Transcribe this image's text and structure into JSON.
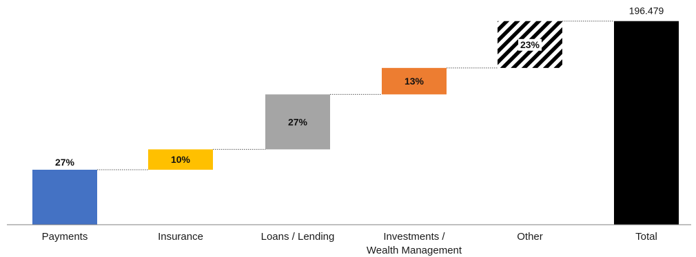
{
  "chart_data": {
    "type": "bar",
    "subtype": "waterfall",
    "title": "",
    "xlabel": "",
    "ylabel": "",
    "ylim": [
      0,
      200
    ],
    "grid": false,
    "legend": "none",
    "categories": [
      [
        "Payments"
      ],
      [
        "Insurance"
      ],
      [
        "Loans / Lending"
      ],
      [
        "Investments /",
        "Wealth Management"
      ],
      [
        "Other"
      ],
      [
        "Total"
      ]
    ],
    "steps": [
      {
        "label": "27%",
        "value": 53.05,
        "fill": "#4472C4",
        "pattern": "none"
      },
      {
        "label": "10%",
        "value": 19.65,
        "fill": "#FFC000",
        "pattern": "none"
      },
      {
        "label": "27%",
        "value": 53.05,
        "fill": "#A5A5A5",
        "pattern": "none"
      },
      {
        "label": "13%",
        "value": 25.54,
        "fill": "#ED7D31",
        "pattern": "none"
      },
      {
        "label": "23%",
        "value": 45.19,
        "fill": "#000000",
        "pattern": "diagonal-stripes"
      }
    ],
    "total": {
      "value": 196.479,
      "label": "196.479",
      "fill": "#000000"
    }
  }
}
